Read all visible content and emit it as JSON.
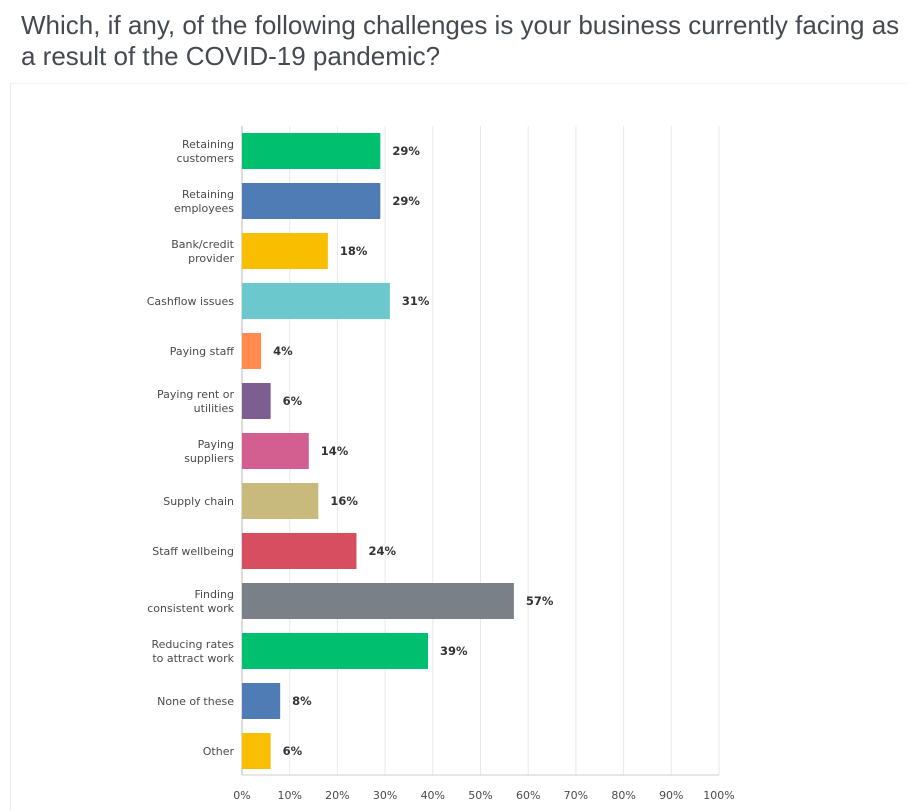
{
  "question": {
    "title": "Which, if any, of the following challenges is your business currently facing as a result of the COVID-19 pandemic?"
  },
  "chart_data": {
    "type": "bar",
    "orientation": "horizontal",
    "categories": [
      [
        "Retaining",
        "customers"
      ],
      [
        "Retaining",
        "employees"
      ],
      [
        "Bank/credit",
        "provider"
      ],
      [
        "Cashflow issues"
      ],
      [
        "Paying staff"
      ],
      [
        "Paying rent or",
        "utilities"
      ],
      [
        "Paying",
        "suppliers"
      ],
      [
        "Supply chain"
      ],
      [
        "Staff wellbeing"
      ],
      [
        "Finding",
        "consistent work"
      ],
      [
        "Reducing rates",
        "to attract work"
      ],
      [
        "None of these"
      ],
      [
        "Other"
      ]
    ],
    "values": [
      29,
      29,
      18,
      31,
      4,
      6,
      14,
      16,
      24,
      57,
      39,
      8,
      6
    ],
    "value_labels": [
      "29%",
      "29%",
      "18%",
      "31%",
      "4%",
      "6%",
      "14%",
      "16%",
      "24%",
      "57%",
      "39%",
      "8%",
      "6%"
    ],
    "colors": [
      "#00bf6f",
      "#507cb6",
      "#f9be00",
      "#6bc8cd",
      "#ff8b4f",
      "#7d5e90",
      "#d25f90",
      "#c8b97c",
      "#d64e5f",
      "#7a8087",
      "#00bf6f",
      "#507cb6",
      "#f9be00"
    ],
    "xlim": [
      0,
      100
    ],
    "x_ticks": [
      "0%",
      "10%",
      "20%",
      "30%",
      "40%",
      "50%",
      "60%",
      "70%",
      "80%",
      "90%",
      "100%"
    ],
    "grid": true
  }
}
